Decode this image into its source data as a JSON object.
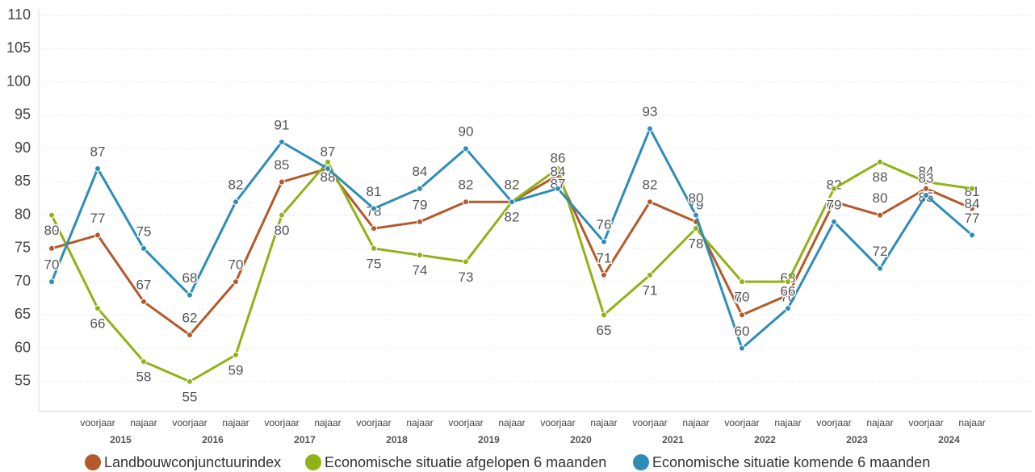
{
  "chart_data": {
    "type": "line",
    "categories": [
      null,
      "voorjaar",
      "najaar",
      "voorjaar",
      "najaar",
      "voorjaar",
      "najaar",
      "voorjaar",
      "najaar",
      "voorjaar",
      "najaar",
      "voorjaar",
      "najaar",
      "voorjaar",
      "najaar",
      "voorjaar",
      "najaar",
      "voorjaar",
      "najaar",
      "voorjaar",
      "najaar"
    ],
    "years": [
      "2015",
      "2016",
      "2017",
      "2018",
      "2019",
      "2020",
      "2021",
      "2022",
      "2023",
      "2024"
    ],
    "series": [
      {
        "name": "Landbouwconjunctuurindex",
        "color": "#b5582a",
        "values": [
          75,
          77,
          67,
          62,
          70,
          85,
          87,
          78,
          79,
          82,
          82,
          86,
          71,
          82,
          79,
          65,
          68,
          82,
          80,
          84,
          81
        ]
      },
      {
        "name": "Economische situatie afgelopen 6 maanden",
        "color": "#8fb214",
        "values": [
          80,
          66,
          58,
          55,
          59,
          80,
          88,
          75,
          74,
          73,
          82,
          87,
          65,
          71,
          78,
          70,
          70,
          84,
          88,
          85,
          84
        ]
      },
      {
        "name": "Economische situatie komende 6 maanden",
        "color": "#2e8db5",
        "values": [
          70,
          87,
          75,
          68,
          82,
          91,
          87,
          81,
          84,
          90,
          82,
          84,
          76,
          93,
          80,
          60,
          66,
          79,
          72,
          83,
          77
        ]
      }
    ],
    "ylim": [
      50.5,
      111
    ],
    "yticks": [
      55,
      60,
      65,
      70,
      75,
      80,
      85,
      90,
      95,
      100,
      105,
      110
    ],
    "grid": true,
    "legend": "bottom"
  }
}
